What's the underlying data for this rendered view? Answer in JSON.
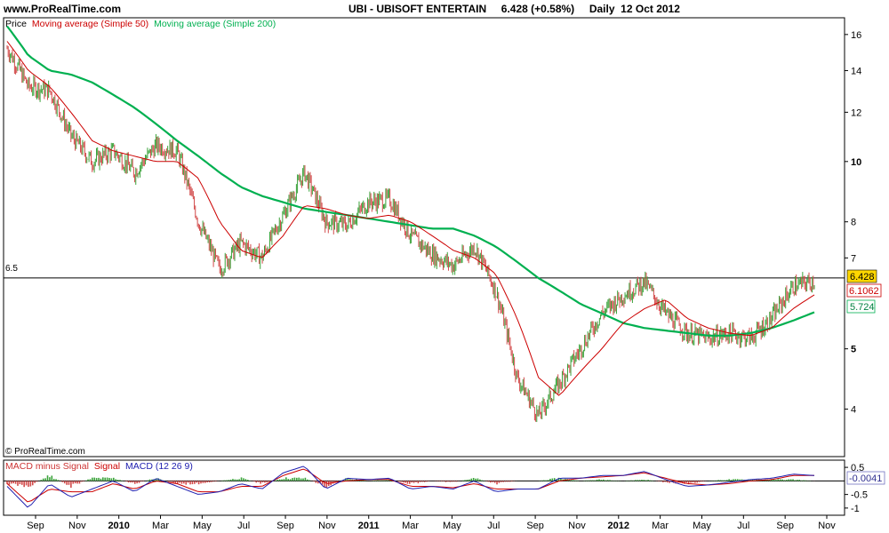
{
  "header": {
    "site": "www.ProRealTime.com",
    "title": "UBI - UBISOFT ENTERTAIN     6.428 (+0.58%)     Daily  12 Oct 2012"
  },
  "copyright": "© ProRealTime.com",
  "price_panel": {
    "legend": {
      "price": "Price",
      "ma50": "Moving average (Simple 50)",
      "ma200": "Moving average (Simple 200)"
    },
    "hline_label": "6.5",
    "badges": {
      "last": "6.428",
      "ma50": "6.1062",
      "ma200": "5.724"
    }
  },
  "macd_panel": {
    "legend": {
      "hist": "MACD minus Signal",
      "signal": "Signal",
      "macd": "MACD (12 26 9)"
    },
    "badge": "-0.0041"
  },
  "colors": {
    "up": "#3aa23a",
    "down": "#d24a4a",
    "ma50": "#cc0000",
    "ma200": "#00b050",
    "signal": "#cc0000",
    "macd": "#2020b0",
    "badge_last": "#ffd700"
  },
  "chart_data": [
    {
      "type": "line",
      "scale": "log",
      "ylim": [
        3.4,
        16.8
      ],
      "yticks": [
        "16",
        "14",
        "12",
        "10",
        "8",
        "7",
        "5",
        "4"
      ],
      "xticks": [
        "Sep",
        "Nov",
        "2010",
        "Mar",
        "May",
        "Jul",
        "Sep",
        "Nov",
        "2011",
        "Mar",
        "May",
        "Jul",
        "Sep",
        "Nov",
        "2012",
        "Mar",
        "May",
        "Jul",
        "Sep",
        "Nov"
      ],
      "x": [
        "2009-08",
        "2009-09",
        "2009-10",
        "2009-11",
        "2009-12",
        "2010-01",
        "2010-02",
        "2010-03",
        "2010-04",
        "2010-05",
        "2010-06",
        "2010-07",
        "2010-08",
        "2010-09",
        "2010-10",
        "2010-11",
        "2010-12",
        "2011-01",
        "2011-02",
        "2011-03",
        "2011-04",
        "2011-05",
        "2011-06",
        "2011-07",
        "2011-08",
        "2011-09",
        "2011-10",
        "2011-11",
        "2011-12",
        "2012-01",
        "2012-02",
        "2012-03",
        "2012-04",
        "2012-05",
        "2012-06",
        "2012-07",
        "2012-08",
        "2012-09",
        "2012-10"
      ],
      "series": [
        {
          "name": "Price",
          "values": [
            15.2,
            13.2,
            13.0,
            11.0,
            10.0,
            10.4,
            9.6,
            10.6,
            10.4,
            8.0,
            6.7,
            7.4,
            7.0,
            8.2,
            9.6,
            8.0,
            7.9,
            8.6,
            8.7,
            7.6,
            7.1,
            6.8,
            7.3,
            6.2,
            4.5,
            3.9,
            4.4,
            5.0,
            5.7,
            6.1,
            6.4,
            5.7,
            5.3,
            5.2,
            5.3,
            5.2,
            5.6,
            6.3,
            6.43
          ]
        },
        {
          "name": "Moving average (Simple 50)",
          "values": [
            15.6,
            14.0,
            13.2,
            12.0,
            10.8,
            10.4,
            10.2,
            10.0,
            10.0,
            9.4,
            8.0,
            7.2,
            7.0,
            7.6,
            8.5,
            8.4,
            8.2,
            8.1,
            8.2,
            8.0,
            7.6,
            7.2,
            7.0,
            6.6,
            5.6,
            4.5,
            4.2,
            4.6,
            5.0,
            5.5,
            5.8,
            6.0,
            5.6,
            5.4,
            5.3,
            5.25,
            5.4,
            5.8,
            6.1062
          ]
        },
        {
          "name": "Moving average (Simple 200)",
          "values": [
            16.5,
            14.8,
            14.0,
            13.8,
            13.4,
            12.8,
            12.2,
            11.5,
            10.8,
            10.2,
            9.6,
            9.1,
            8.8,
            8.6,
            8.4,
            8.3,
            8.2,
            8.1,
            8.0,
            7.9,
            7.8,
            7.8,
            7.6,
            7.3,
            6.9,
            6.5,
            6.2,
            5.9,
            5.7,
            5.5,
            5.4,
            5.35,
            5.3,
            5.25,
            5.25,
            5.3,
            5.4,
            5.55,
            5.724
          ]
        }
      ],
      "hline": 6.5
    },
    {
      "type": "area",
      "ylim": [
        -1.2,
        0.7
      ],
      "yticks": [
        "0.5",
        "-0.5",
        "-1"
      ],
      "x": [
        "2009-08",
        "2009-09",
        "2009-10",
        "2009-11",
        "2009-12",
        "2010-01",
        "2010-02",
        "2010-03",
        "2010-04",
        "2010-05",
        "2010-06",
        "2010-07",
        "2010-08",
        "2010-09",
        "2010-10",
        "2010-11",
        "2010-12",
        "2011-01",
        "2011-02",
        "2011-03",
        "2011-04",
        "2011-05",
        "2011-06",
        "2011-07",
        "2011-08",
        "2011-09",
        "2011-10",
        "2011-11",
        "2011-12",
        "2012-01",
        "2012-02",
        "2012-03",
        "2012-04",
        "2012-05",
        "2012-06",
        "2012-07",
        "2012-08",
        "2012-09",
        "2012-10"
      ],
      "series": [
        {
          "name": "MACD",
          "values": [
            -0.2,
            -1.0,
            -0.1,
            -0.6,
            -0.3,
            0.0,
            -0.4,
            0.1,
            -0.2,
            -0.5,
            -0.4,
            -0.1,
            -0.3,
            0.3,
            0.55,
            -0.3,
            0.1,
            0.05,
            0.1,
            -0.3,
            -0.2,
            -0.3,
            0.0,
            -0.4,
            -0.3,
            -0.3,
            0.1,
            0.1,
            0.2,
            0.2,
            0.35,
            0.05,
            -0.2,
            -0.15,
            -0.05,
            0.05,
            0.1,
            0.25,
            0.2
          ]
        },
        {
          "name": "Signal",
          "values": [
            -0.1,
            -0.8,
            -0.3,
            -0.4,
            -0.4,
            -0.1,
            -0.3,
            0.0,
            -0.1,
            -0.4,
            -0.4,
            -0.2,
            -0.2,
            0.2,
            0.45,
            -0.1,
            0.0,
            0.05,
            0.05,
            -0.2,
            -0.2,
            -0.25,
            -0.1,
            -0.3,
            -0.3,
            -0.3,
            0.0,
            0.1,
            0.15,
            0.2,
            0.3,
            0.1,
            -0.1,
            -0.15,
            -0.1,
            0.0,
            0.05,
            0.2,
            0.2
          ]
        },
        {
          "name": "MACD minus Signal",
          "values": [
            -0.1,
            -0.2,
            0.2,
            -0.2,
            0.1,
            0.1,
            -0.1,
            0.1,
            -0.1,
            -0.1,
            0.0,
            0.1,
            -0.1,
            0.1,
            0.1,
            -0.2,
            0.1,
            0.0,
            0.05,
            -0.1,
            0.0,
            -0.05,
            0.1,
            -0.1,
            0.0,
            0.0,
            0.1,
            0.0,
            0.05,
            0.0,
            0.05,
            -0.05,
            -0.1,
            0.0,
            0.05,
            0.05,
            0.05,
            0.05,
            -0.0041
          ]
        }
      ]
    }
  ]
}
